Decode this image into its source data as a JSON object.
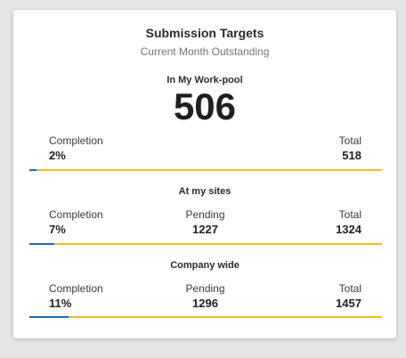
{
  "card": {
    "title": "Submission Targets",
    "subtitle": "Current Month Outstanding"
  },
  "workpool": {
    "heading": "In My Work-pool",
    "count": "506",
    "completion_label": "Completion",
    "completion_value": "2%",
    "completion_fraction": 0.02,
    "total_label": "Total",
    "total_value": "518"
  },
  "sites": {
    "heading": "At my sites",
    "completion_label": "Completion",
    "completion_value": "7%",
    "completion_fraction": 0.07,
    "pending_label": "Pending",
    "pending_value": "1227",
    "total_label": "Total",
    "total_value": "1324"
  },
  "company": {
    "heading": "Company wide",
    "completion_label": "Completion",
    "completion_value": "11%",
    "completion_fraction": 0.11,
    "pending_label": "Pending",
    "pending_value": "1296",
    "total_label": "Total",
    "total_value": "1457"
  },
  "colors": {
    "progress_fill": "#1f6db5",
    "progress_track": "#f2bd1d"
  }
}
